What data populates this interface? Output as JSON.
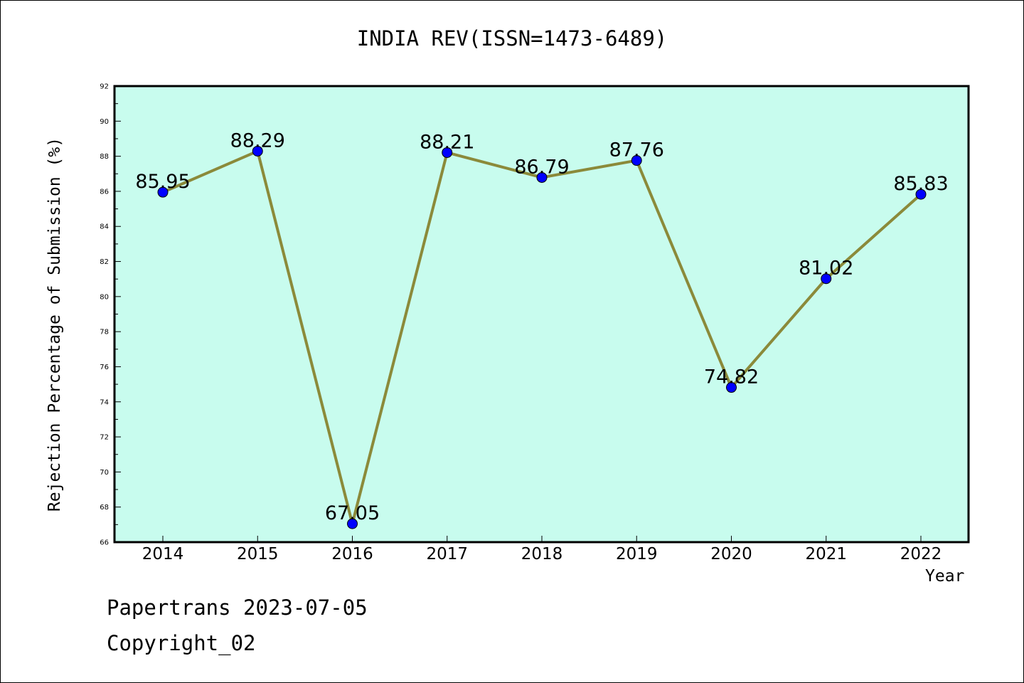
{
  "chart_data": {
    "type": "line",
    "title": "INDIA REV(ISSN=1473-6489)",
    "xlabel": "Year",
    "ylabel": "Rejection Percentage of Submission (%)",
    "categories": [
      "2014",
      "2015",
      "2016",
      "2017",
      "2018",
      "2019",
      "2020",
      "2021",
      "2022"
    ],
    "series": [
      {
        "values": [
          85.95,
          88.29,
          67.05,
          88.21,
          86.79,
          87.76,
          74.82,
          81.02,
          85.83
        ]
      }
    ],
    "data_labels": [
      "85.95",
      "88.29",
      "67.05",
      "88.21",
      "86.79",
      "87.76",
      "74.82",
      "81.02",
      "85.83"
    ],
    "ylim": [
      66,
      92
    ],
    "yticks": [
      66,
      68,
      70,
      72,
      74,
      76,
      78,
      80,
      82,
      84,
      86,
      88,
      90,
      92
    ],
    "grid": false,
    "colors": {
      "plot_background": "#c8fcee",
      "line": "#8b8a3a",
      "marker": "#0000ff"
    }
  },
  "footer": {
    "line1": "Papertrans 2023-07-05",
    "line2": "Copyright_02"
  }
}
